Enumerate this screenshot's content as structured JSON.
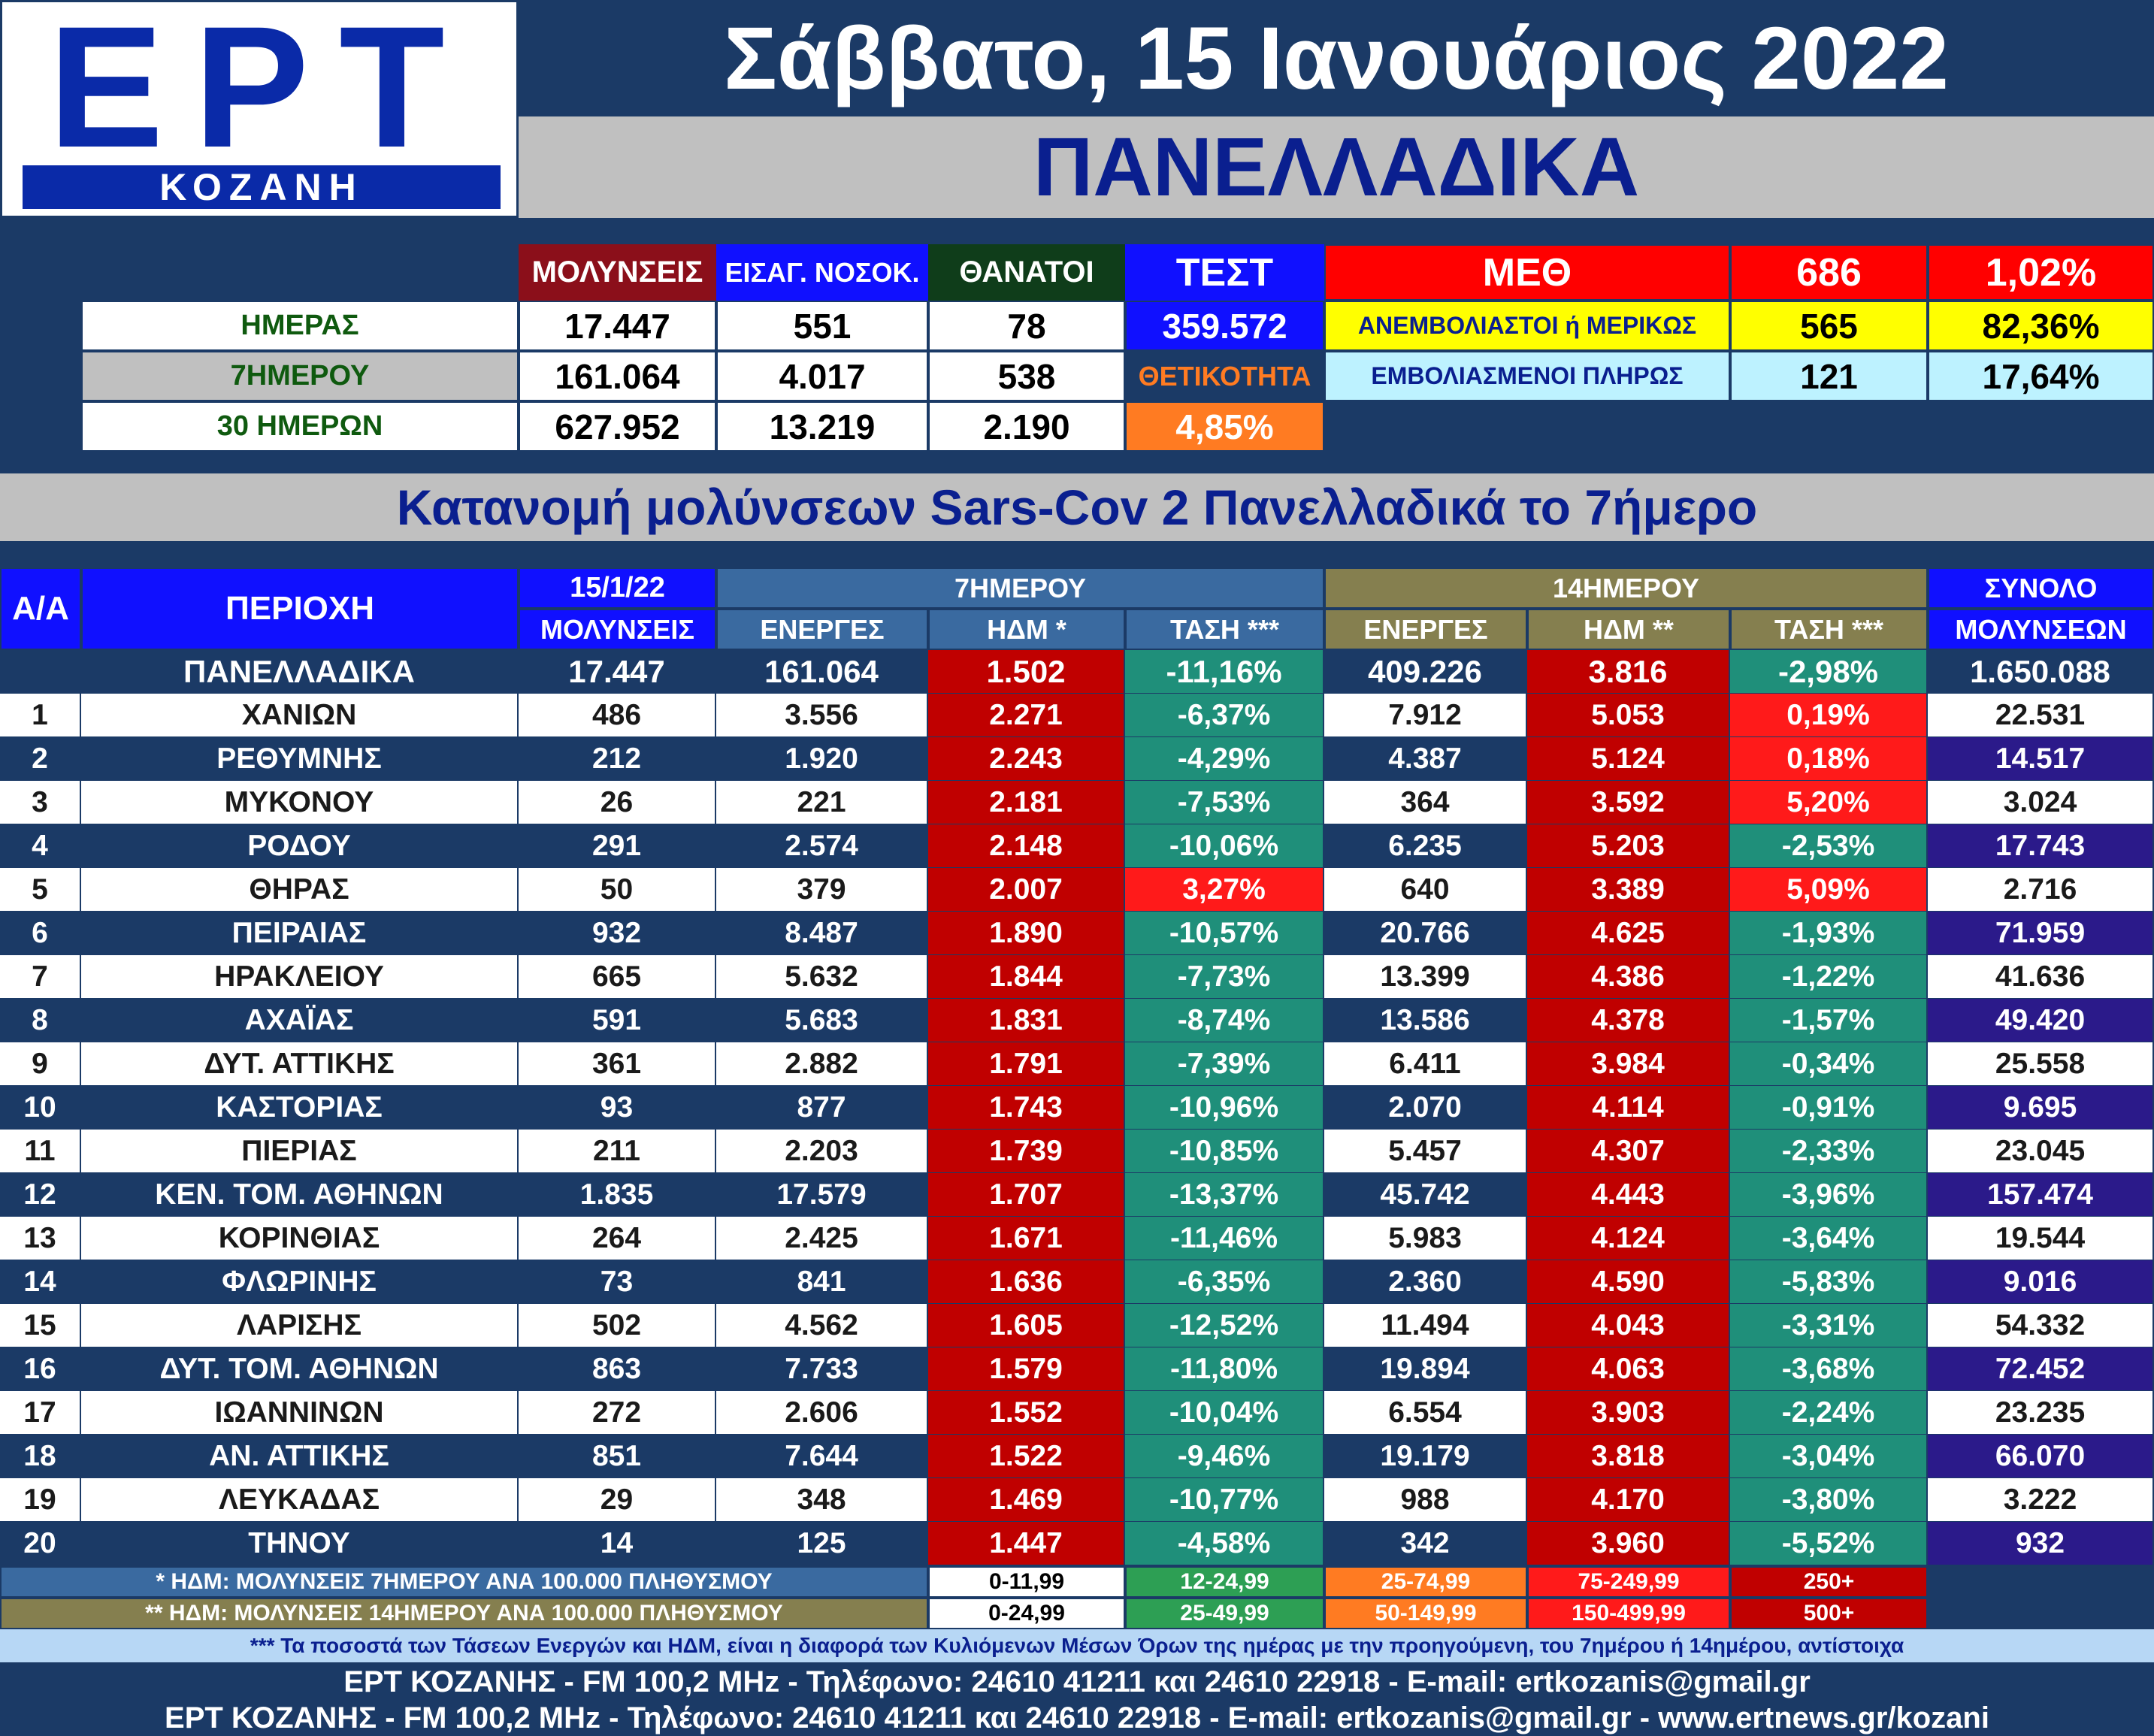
{
  "header": {
    "logo_text": "ΕΡΤ",
    "logo_sub": "ΚΟΖΑΝΗ",
    "date": "Σάββατο, 15 Ιανουάριος 2022",
    "region": "ΠΑΝΕΛΛΑΔΙΚΑ"
  },
  "summary": {
    "headers": {
      "infections": "ΜΟΛΥΝΣΕΙΣ",
      "admissions": "ΕΙΣΑΓ. ΝΟΣΟΚ.",
      "deaths": "ΘΑΝΑΤΟΙ",
      "tests": "ΤΕΣΤ"
    },
    "rows": [
      {
        "label": "ΗΜΕΡΑΣ",
        "infections": "17.447",
        "admissions": "551",
        "deaths": "78",
        "extra": "359.572"
      },
      {
        "label": "7ΗΜΕΡΟΥ",
        "infections": "161.064",
        "admissions": "4.017",
        "deaths": "538",
        "extra": "ΘΕΤΙΚΟΤΗΤΑ"
      },
      {
        "label": "30 ΗΜΕΡΩΝ",
        "infections": "627.952",
        "admissions": "13.219",
        "deaths": "2.190",
        "extra": "4,85%"
      }
    ],
    "icu": {
      "label": "ΜΕΘ",
      "count": "686",
      "pct": "1,02%",
      "unvax_label": "ΑΝΕΜΒΟΛΙΑΣΤΟΙ ή ΜΕΡΙΚΩΣ",
      "unvax_count": "565",
      "unvax_pct": "82,36%",
      "vax_label": "ΕΜΒΟΛΙΑΣΜΕΝΟΙ ΠΛΗΡΩΣ",
      "vax_count": "121",
      "vax_pct": "17,64%"
    }
  },
  "subtitle": "Κατανομή μολύνσεων Sars-Cov 2 Πανελλαδικά το 7ήμερο",
  "table": {
    "headers": {
      "aa": "Α/Α",
      "area": "ΠΕΡΙΟΧΗ",
      "date": "15/1/22",
      "date_sub": "ΜΟΛΥΝΣΕΙΣ",
      "week": "7ΗΜΕΡΟΥ",
      "fortnight": "14ΗΜΕΡΟΥ",
      "total": "ΣΥΝΟΛΟ",
      "total_sub": "ΜΟΛΥΝΣΕΩΝ",
      "active7": "ΕΝΕΡΓΕΣ",
      "idm7": "ΗΔΜ *",
      "trend7": "ΤΑΣΗ ***",
      "active14": "ΕΝΕΡΓΕΣ",
      "idm14": "ΗΔΜ **",
      "trend14": "ΤΑΣΗ ***"
    },
    "national": [
      "",
      "ΠΑΝΕΛΛΑΔΙΚΑ",
      "17.447",
      "161.064",
      "1.502",
      "-11,16%",
      "409.226",
      "3.816",
      "-2,98%",
      "1.650.088"
    ],
    "rows": [
      [
        "1",
        "ΧΑΝΙΩΝ",
        "486",
        "3.556",
        "2.271",
        "-6,37%",
        "7.912",
        "5.053",
        "0,19%",
        "22.531"
      ],
      [
        "2",
        "ΡΕΘΥΜΝΗΣ",
        "212",
        "1.920",
        "2.243",
        "-4,29%",
        "4.387",
        "5.124",
        "0,18%",
        "14.517"
      ],
      [
        "3",
        "ΜΥΚΟΝΟΥ",
        "26",
        "221",
        "2.181",
        "-7,53%",
        "364",
        "3.592",
        "5,20%",
        "3.024"
      ],
      [
        "4",
        "ΡΟΔΟΥ",
        "291",
        "2.574",
        "2.148",
        "-10,06%",
        "6.235",
        "5.203",
        "-2,53%",
        "17.743"
      ],
      [
        "5",
        "ΘΗΡΑΣ",
        "50",
        "379",
        "2.007",
        "3,27%",
        "640",
        "3.389",
        "5,09%",
        "2.716"
      ],
      [
        "6",
        "ΠΕΙΡΑΙΑΣ",
        "932",
        "8.487",
        "1.890",
        "-10,57%",
        "20.766",
        "4.625",
        "-1,93%",
        "71.959"
      ],
      [
        "7",
        "ΗΡΑΚΛΕΙΟΥ",
        "665",
        "5.632",
        "1.844",
        "-7,73%",
        "13.399",
        "4.386",
        "-1,22%",
        "41.636"
      ],
      [
        "8",
        "ΑΧΑΪΑΣ",
        "591",
        "5.683",
        "1.831",
        "-8,74%",
        "13.586",
        "4.378",
        "-1,57%",
        "49.420"
      ],
      [
        "9",
        "ΔΥΤ. ΑΤΤΙΚΗΣ",
        "361",
        "2.882",
        "1.791",
        "-7,39%",
        "6.411",
        "3.984",
        "-0,34%",
        "25.558"
      ],
      [
        "10",
        "ΚΑΣΤΟΡΙΑΣ",
        "93",
        "877",
        "1.743",
        "-10,96%",
        "2.070",
        "4.114",
        "-0,91%",
        "9.695"
      ],
      [
        "11",
        "ΠΙΕΡΙΑΣ",
        "211",
        "2.203",
        "1.739",
        "-10,85%",
        "5.457",
        "4.307",
        "-2,33%",
        "23.045"
      ],
      [
        "12",
        "ΚΕΝ. ΤΟΜ. ΑΘΗΝΩΝ",
        "1.835",
        "17.579",
        "1.707",
        "-13,37%",
        "45.742",
        "4.443",
        "-3,96%",
        "157.474"
      ],
      [
        "13",
        "ΚΟΡΙΝΘΙΑΣ",
        "264",
        "2.425",
        "1.671",
        "-11,46%",
        "5.983",
        "4.124",
        "-3,64%",
        "19.544"
      ],
      [
        "14",
        "ΦΛΩΡΙΝΗΣ",
        "73",
        "841",
        "1.636",
        "-6,35%",
        "2.360",
        "4.590",
        "-5,83%",
        "9.016"
      ],
      [
        "15",
        "ΛΑΡΙΣΗΣ",
        "502",
        "4.562",
        "1.605",
        "-12,52%",
        "11.494",
        "4.043",
        "-3,31%",
        "54.332"
      ],
      [
        "16",
        "ΔΥΤ. ΤΟΜ. ΑΘΗΝΩΝ",
        "863",
        "7.733",
        "1.579",
        "-11,80%",
        "19.894",
        "4.063",
        "-3,68%",
        "72.452"
      ],
      [
        "17",
        "ΙΩΑΝΝΙΝΩΝ",
        "272",
        "2.606",
        "1.552",
        "-10,04%",
        "6.554",
        "3.903",
        "-2,24%",
        "23.235"
      ],
      [
        "18",
        "ΑΝ. ΑΤΤΙΚΗΣ",
        "851",
        "7.644",
        "1.522",
        "-9,46%",
        "19.179",
        "3.818",
        "-3,04%",
        "66.070"
      ],
      [
        "19",
        "ΛΕΥΚΑΔΑΣ",
        "29",
        "348",
        "1.469",
        "-10,77%",
        "988",
        "4.170",
        "-3,80%",
        "3.222"
      ],
      [
        "20",
        "ΤΗΝΟΥ",
        "14",
        "125",
        "1.447",
        "-4,58%",
        "342",
        "3.960",
        "-5,52%",
        "932"
      ]
    ]
  },
  "legend": {
    "row1_label": "* ΗΔΜ: ΜΟΛΥΝΣΕΙΣ 7ΗΜΕΡΟΥ ΑΝΑ 100.000 ΠΛΗΘΥΣΜΟΥ",
    "row1": [
      "0-11,99",
      "12-24,99",
      "25-74,99",
      "75-249,99",
      "250+"
    ],
    "row2_label": "** ΗΔΜ: ΜΟΛΥΝΣΕΙΣ 14ΗΜΕΡΟΥ ΑΝΑ 100.000 ΠΛΗΘΥΣΜΟΥ",
    "row2": [
      "0-24,99",
      "25-49,99",
      "50-149,99",
      "150-499,99",
      "500+"
    ]
  },
  "footer": {
    "note": "*** Τα ποσοστά των Τάσεων Ενεργών και ΗΔΜ, είναι η διαφορά των Κυλιόμενων Μέσων Όρων της ημέρας με την προηγούμενη, του 7ημέρου ή 14ημέρου, αντίστοιχα",
    "line1": "ΕΡΤ ΚΟΖΑΝΗΣ - FM 100,2 MHz - Τηλέφωνο:  24610 41211 και 24610 22918 - E-mail: ertkozanis@gmail.gr",
    "line2": "ΕΡΤ ΚΟΖΑΝΗΣ - FM 100,2 MHz - Τηλέφωνο:  24610 41211 και 24610 22918 - E-mail: ertkozanis@gmail.gr - www.ertnews.gr/kozani"
  },
  "colors": {
    "navy": "#1b3a66",
    "red": "#c00000",
    "teal": "#1f8f7a",
    "bright_red": "#ff1a1a",
    "yellow": "#ffff00",
    "orange": "#ff7b22",
    "blue": "#1010ff",
    "olive": "#857f4f"
  }
}
